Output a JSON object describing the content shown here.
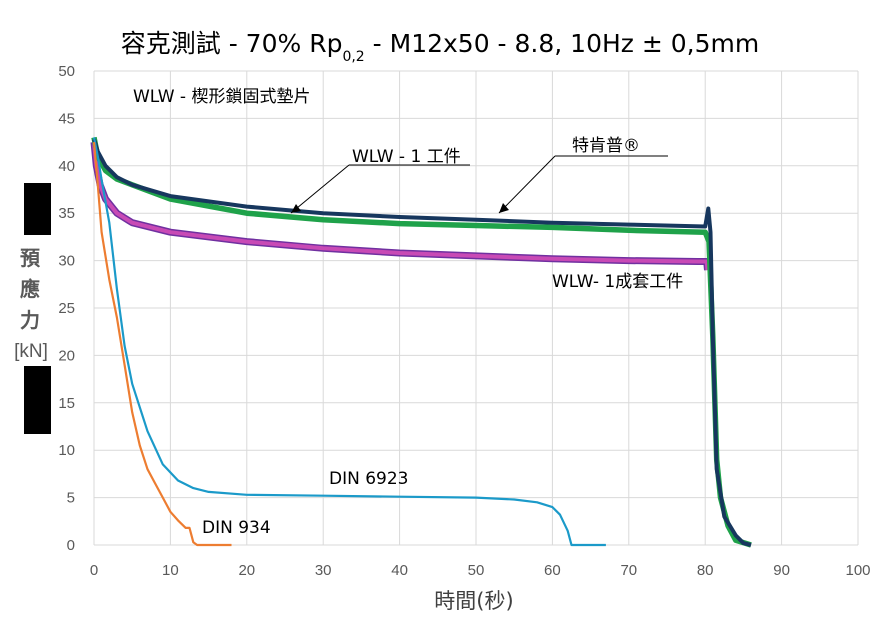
{
  "chart_data": {
    "type": "line",
    "title_parts": [
      "容克測試 - 70% Rp",
      "0,2",
      " - M12x50 - 8.8, 10Hz ± 0,5mm"
    ],
    "xlabel": "時間(秒)",
    "ylabel_chars": [
      "預",
      "應",
      "力"
    ],
    "ylabel_unit": "[kN]",
    "xlim": [
      0,
      100
    ],
    "ylim": [
      0,
      50
    ],
    "x_ticks": [
      "0",
      "10",
      "20",
      "30",
      "40",
      "50",
      "60",
      "70",
      "80",
      "90",
      "100"
    ],
    "y_ticks": [
      "0",
      "5",
      "10",
      "15",
      "20",
      "25",
      "30",
      "35",
      "40",
      "45",
      "50"
    ],
    "grid": true,
    "annotations": {
      "legend_note": "WLW - 楔形鎖固式墊片",
      "wlw1": "WLW - 1 工件",
      "sp": "特肯普®",
      "wlw_set": "WLW- 1成套工件",
      "din6923": "DIN 6923",
      "din934": "DIN 934"
    },
    "series": [
      {
        "color": "#7030A0",
        "highlight": "#C84AB5",
        "points": [
          [
            0,
            42.5
          ],
          [
            0.3,
            40
          ],
          [
            0.8,
            38
          ],
          [
            1.5,
            36.5
          ],
          [
            3,
            35
          ],
          [
            5,
            34
          ],
          [
            10,
            33
          ],
          [
            20,
            32
          ],
          [
            30,
            31.3
          ],
          [
            40,
            30.8
          ],
          [
            50,
            30.5
          ],
          [
            60,
            30.2
          ],
          [
            70,
            30
          ],
          [
            79,
            29.9
          ],
          [
            80.2,
            29.9
          ],
          [
            80.3,
            29
          ]
        ]
      },
      {
        "color": "#1FA24A",
        "points": [
          [
            0,
            43
          ],
          [
            0.5,
            41
          ],
          [
            1.5,
            39.5
          ],
          [
            3,
            38.6
          ],
          [
            5,
            38
          ],
          [
            10,
            36.5
          ],
          [
            20,
            35
          ],
          [
            30,
            34.3
          ],
          [
            40,
            33.9
          ],
          [
            50,
            33.7
          ],
          [
            60,
            33.5
          ],
          [
            70,
            33.2
          ],
          [
            80,
            33
          ],
          [
            80.5,
            32
          ],
          [
            81,
            22
          ],
          [
            81.5,
            9
          ],
          [
            82,
            5
          ],
          [
            83,
            2
          ],
          [
            84,
            0.5
          ],
          [
            86,
            0
          ]
        ]
      },
      {
        "color": "#17375E",
        "points": [
          [
            0,
            42.8
          ],
          [
            0.5,
            41.5
          ],
          [
            1.5,
            40
          ],
          [
            3,
            38.8
          ],
          [
            5,
            38
          ],
          [
            10,
            36.8
          ],
          [
            20,
            35.7
          ],
          [
            30,
            35
          ],
          [
            40,
            34.6
          ],
          [
            50,
            34.3
          ],
          [
            60,
            34
          ],
          [
            70,
            33.8
          ],
          [
            80,
            33.6
          ],
          [
            80.4,
            35.5
          ],
          [
            80.7,
            33
          ],
          [
            81,
            22
          ],
          [
            81.5,
            8
          ],
          [
            82.5,
            3
          ],
          [
            84,
            1
          ],
          [
            85,
            0.2
          ],
          [
            86,
            0
          ]
        ]
      },
      {
        "color": "#1B9AC9",
        "points": [
          [
            0,
            43
          ],
          [
            0.5,
            41
          ],
          [
            1,
            38.5
          ],
          [
            2,
            34
          ],
          [
            3,
            27
          ],
          [
            4,
            21
          ],
          [
            5,
            17
          ],
          [
            7,
            12
          ],
          [
            9,
            8.5
          ],
          [
            11,
            6.8
          ],
          [
            13,
            6
          ],
          [
            15,
            5.6
          ],
          [
            20,
            5.3
          ],
          [
            30,
            5.2
          ],
          [
            40,
            5.1
          ],
          [
            50,
            5
          ],
          [
            55,
            4.8
          ],
          [
            58,
            4.5
          ],
          [
            60,
            4
          ],
          [
            61,
            3.2
          ],
          [
            62,
            1.5
          ],
          [
            62.5,
            0
          ],
          [
            67,
            0
          ]
        ]
      },
      {
        "color": "#ED7D31",
        "points": [
          [
            0,
            42.5
          ],
          [
            0.5,
            38
          ],
          [
            1,
            33
          ],
          [
            2,
            28
          ],
          [
            3,
            24
          ],
          [
            4,
            19
          ],
          [
            5,
            14
          ],
          [
            6,
            10.5
          ],
          [
            7,
            8
          ],
          [
            8,
            6.5
          ],
          [
            9,
            5
          ],
          [
            10,
            3.5
          ],
          [
            11,
            2.6
          ],
          [
            12,
            1.8
          ],
          [
            12.5,
            1.8
          ],
          [
            13,
            0.3
          ],
          [
            13.5,
            0
          ],
          [
            18,
            0
          ]
        ]
      }
    ]
  }
}
